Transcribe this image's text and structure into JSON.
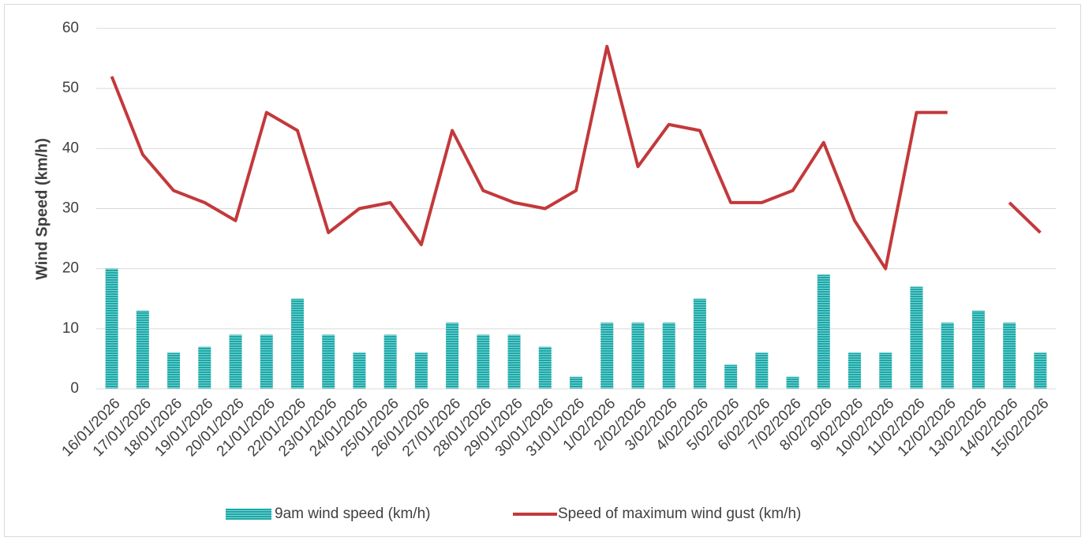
{
  "chart_data": {
    "type": "bar_line",
    "y_label": "Wind Speed (km/h)",
    "categories": [
      "16/01/2026",
      "17/01/2026",
      "18/01/2026",
      "19/01/2026",
      "20/01/2026",
      "21/01/2026",
      "22/01/2026",
      "23/01/2026",
      "24/01/2026",
      "25/01/2026",
      "26/01/2026",
      "27/01/2026",
      "28/01/2026",
      "29/01/2026",
      "30/01/2026",
      "31/01/2026",
      "1/02/2026",
      "2/02/2026",
      "3/02/2026",
      "4/02/2026",
      "5/02/2026",
      "6/02/2026",
      "7/02/2026",
      "8/02/2026",
      "9/02/2026",
      "10/02/2026",
      "11/02/2026",
      "12/02/2026",
      "13/02/2026",
      "14/02/2026",
      "15/02/2026"
    ],
    "series": [
      {
        "name": "9am wind speed (km/h)",
        "type": "bar",
        "color": "#1aa9a9",
        "values": [
          20,
          13,
          6,
          7,
          9,
          9,
          15,
          9,
          6,
          9,
          6,
          11,
          9,
          9,
          7,
          2,
          11,
          11,
          11,
          15,
          4,
          6,
          2,
          19,
          6,
          6,
          17,
          11,
          13,
          11,
          6
        ]
      },
      {
        "name": "Speed of maximum wind gust (km/h)",
        "type": "line",
        "color": "#c3393b",
        "values": [
          52,
          39,
          33,
          31,
          28,
          46,
          43,
          26,
          30,
          31,
          24,
          43,
          33,
          31,
          30,
          33,
          57,
          37,
          44,
          43,
          31,
          31,
          33,
          41,
          28,
          20,
          46,
          46,
          null,
          31,
          26
        ]
      }
    ],
    "ylim": [
      0,
      60
    ],
    "yticks": [
      0,
      10,
      20,
      30,
      40,
      50,
      60
    ],
    "grid": true,
    "legend": "bottom"
  }
}
